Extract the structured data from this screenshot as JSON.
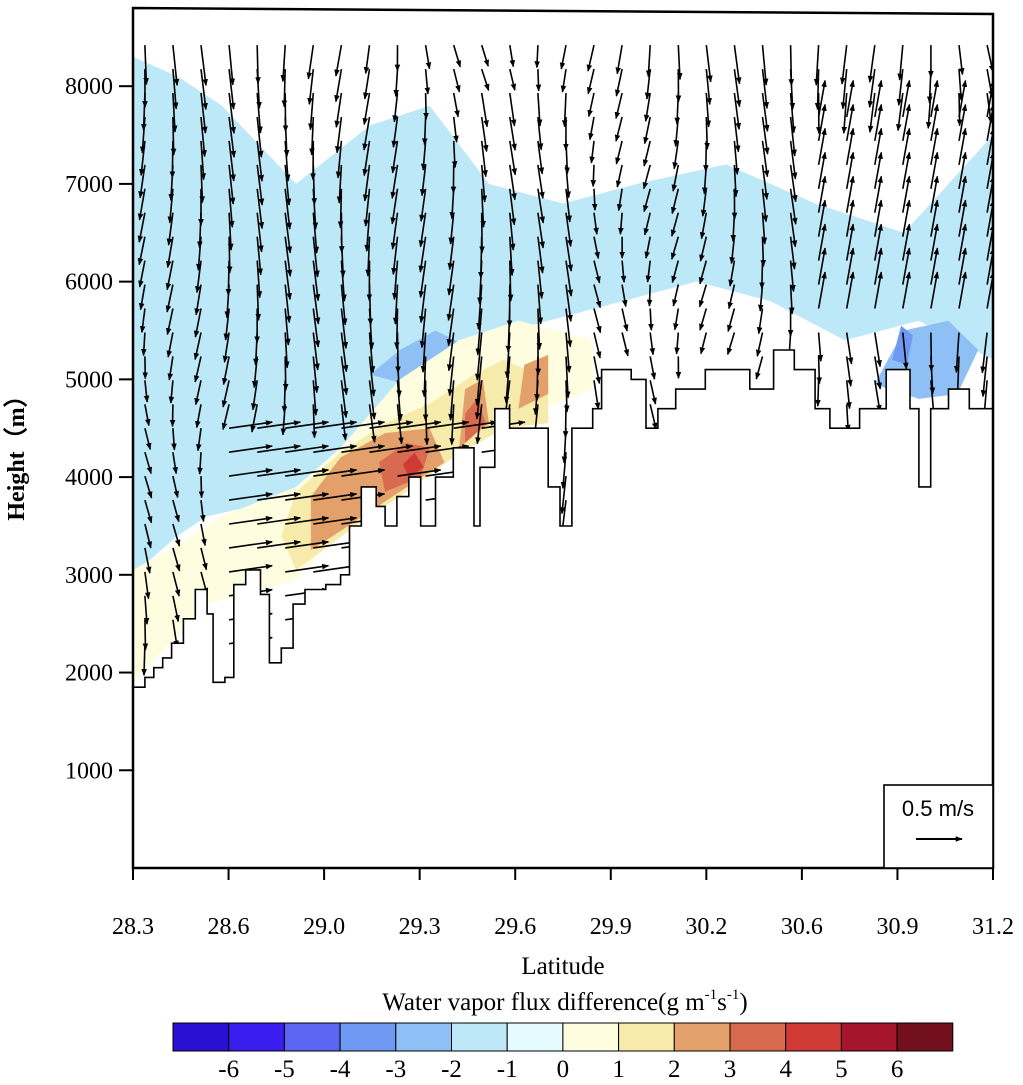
{
  "chart_data": {
    "type": "contour-vector",
    "xlabel": "Latitude",
    "ylabel": "Height（m）",
    "x_ticks": [
      "28.3",
      "28.6",
      "29.0",
      "29.3",
      "29.6",
      "29.9",
      "30.2",
      "30.6",
      "30.9",
      "31.2"
    ],
    "xlim": [
      28.3,
      31.2
    ],
    "y_ticks": [
      "1000",
      "2000",
      "3000",
      "4000",
      "5000",
      "6000",
      "7000",
      "8000"
    ],
    "ylim": [
      0,
      8800
    ],
    "colorbar": {
      "title": "Water vapor flux difference(g m",
      "title_sup1": "-1",
      "title_mid": "s",
      "title_sup2": "-1",
      "title_end": ")",
      "labels": [
        "-6",
        "-5",
        "-4",
        "-3",
        "-2",
        "-1",
        "0",
        "1",
        "2",
        "3",
        "4",
        "5",
        "6"
      ],
      "colors": [
        "#2a10d0",
        "#3a1ef0",
        "#5a66f2",
        "#6f98f2",
        "#8ec0f5",
        "#bde8f8",
        "#e6fbff",
        "#fffde0",
        "#f6ebaa",
        "#e3a06a",
        "#d86a4f",
        "#cf3a34",
        "#a5162c",
        "#73101e"
      ]
    },
    "reference_vector": {
      "label": "0.5 m/s",
      "value": 0.5,
      "unit": "m/s"
    },
    "terrain": [
      [
        28.3,
        1850
      ],
      [
        28.34,
        1950
      ],
      [
        28.37,
        2050
      ],
      [
        28.4,
        2150
      ],
      [
        28.43,
        2300
      ],
      [
        28.47,
        2550
      ],
      [
        28.51,
        2850
      ],
      [
        28.55,
        2600
      ],
      [
        28.57,
        1900
      ],
      [
        28.61,
        1950
      ],
      [
        28.64,
        2900
      ],
      [
        28.68,
        3050
      ],
      [
        28.73,
        2800
      ],
      [
        28.76,
        2100
      ],
      [
        28.8,
        2250
      ],
      [
        28.84,
        2700
      ],
      [
        28.88,
        2850
      ],
      [
        28.95,
        2900
      ],
      [
        29.0,
        3000
      ],
      [
        29.03,
        3500
      ],
      [
        29.07,
        3900
      ],
      [
        29.12,
        3700
      ],
      [
        29.15,
        3500
      ],
      [
        29.19,
        3800
      ],
      [
        29.23,
        4000
      ],
      [
        29.27,
        3500
      ],
      [
        29.32,
        4000
      ],
      [
        29.38,
        4300
      ],
      [
        29.45,
        3500
      ],
      [
        29.47,
        4100
      ],
      [
        29.52,
        4700
      ],
      [
        29.57,
        4500
      ],
      [
        29.63,
        4500
      ],
      [
        29.7,
        3900
      ],
      [
        29.74,
        3500
      ],
      [
        29.78,
        4500
      ],
      [
        29.85,
        4700
      ],
      [
        29.88,
        5100
      ],
      [
        29.98,
        5000
      ],
      [
        30.03,
        4500
      ],
      [
        30.07,
        4700
      ],
      [
        30.13,
        4900
      ],
      [
        30.23,
        5100
      ],
      [
        30.38,
        4900
      ],
      [
        30.46,
        5300
      ],
      [
        30.53,
        5100
      ],
      [
        30.6,
        4700
      ],
      [
        30.65,
        4500
      ],
      [
        30.75,
        4700
      ],
      [
        30.84,
        5100
      ],
      [
        30.92,
        4700
      ],
      [
        30.95,
        3900
      ],
      [
        30.99,
        4700
      ],
      [
        31.05,
        4900
      ],
      [
        31.12,
        4700
      ],
      [
        31.2,
        4500
      ]
    ],
    "contours": [
      {
        "level": -1,
        "points": [
          [
            28.3,
            3000
          ],
          [
            28.45,
            3400
          ],
          [
            28.55,
            3600
          ],
          [
            28.7,
            3700
          ],
          [
            28.85,
            3800
          ],
          [
            29.0,
            4000
          ],
          [
            29.1,
            4500
          ],
          [
            29.25,
            5000
          ],
          [
            29.45,
            5400
          ],
          [
            29.7,
            5600
          ],
          [
            29.95,
            5800
          ],
          [
            30.2,
            6000
          ],
          [
            30.45,
            5800
          ],
          [
            30.7,
            5400
          ],
          [
            30.95,
            5600
          ],
          [
            31.2,
            5200
          ],
          [
            31.2,
            7500
          ],
          [
            30.9,
            6500
          ],
          [
            30.6,
            6800
          ],
          [
            30.3,
            7200
          ],
          [
            30.0,
            7000
          ],
          [
            29.75,
            6800
          ],
          [
            29.5,
            7000
          ],
          [
            29.3,
            7800
          ],
          [
            29.1,
            7600
          ],
          [
            28.85,
            7000
          ],
          [
            28.6,
            7800
          ],
          [
            28.45,
            8100
          ],
          [
            28.3,
            8300
          ]
        ]
      },
      {
        "level": -2,
        "points": [
          [
            29.1,
            5050
          ],
          [
            29.2,
            5300
          ],
          [
            29.32,
            5500
          ],
          [
            29.42,
            5350
          ],
          [
            29.38,
            5050
          ],
          [
            29.22,
            4950
          ]
        ]
      },
      {
        "level": -2,
        "points": [
          [
            30.8,
            4950
          ],
          [
            30.9,
            5500
          ],
          [
            31.05,
            5600
          ],
          [
            31.15,
            5300
          ],
          [
            31.08,
            4850
          ],
          [
            30.95,
            4800
          ]
        ]
      },
      {
        "level": -3,
        "points": [
          [
            30.86,
            5200
          ],
          [
            30.89,
            5550
          ],
          [
            30.93,
            5450
          ],
          [
            30.91,
            5150
          ]
        ]
      },
      {
        "level": 1,
        "points": [
          [
            28.3,
            1900
          ],
          [
            28.55,
            2700
          ],
          [
            28.85,
            2950
          ],
          [
            29.05,
            3600
          ],
          [
            29.25,
            4100
          ],
          [
            29.45,
            4400
          ],
          [
            29.6,
            4600
          ],
          [
            29.85,
            4900
          ],
          [
            29.85,
            5400
          ],
          [
            29.6,
            5600
          ],
          [
            29.4,
            5400
          ],
          [
            29.2,
            5000
          ],
          [
            29.0,
            4300
          ],
          [
            28.85,
            3900
          ],
          [
            28.6,
            3600
          ],
          [
            28.45,
            3300
          ],
          [
            28.3,
            3050
          ]
        ]
      },
      {
        "level": 2,
        "points": [
          [
            28.85,
            3050
          ],
          [
            29.05,
            3500
          ],
          [
            29.2,
            3800
          ],
          [
            29.38,
            4200
          ],
          [
            29.55,
            4500
          ],
          [
            29.7,
            4550
          ],
          [
            29.7,
            5000
          ],
          [
            29.55,
            5200
          ],
          [
            29.45,
            5050
          ],
          [
            29.3,
            4750
          ],
          [
            29.15,
            4550
          ],
          [
            29.0,
            4250
          ],
          [
            28.85,
            3850
          ],
          [
            28.8,
            3400
          ]
        ]
      },
      {
        "level": 3,
        "points": [
          [
            28.9,
            3250
          ],
          [
            29.05,
            3550
          ],
          [
            29.2,
            3850
          ],
          [
            29.35,
            4150
          ],
          [
            29.3,
            4500
          ],
          [
            29.15,
            4450
          ],
          [
            29.0,
            4200
          ],
          [
            28.9,
            3800
          ]
        ]
      },
      {
        "level": 3,
        "points": [
          [
            29.4,
            4300
          ],
          [
            29.5,
            4550
          ],
          [
            29.48,
            5000
          ],
          [
            29.42,
            4900
          ]
        ]
      },
      {
        "level": 3,
        "points": [
          [
            29.6,
            4700
          ],
          [
            29.7,
            4850
          ],
          [
            29.7,
            5250
          ],
          [
            29.62,
            5150
          ]
        ]
      },
      {
        "level": 4,
        "points": [
          [
            29.15,
            3850
          ],
          [
            29.27,
            4000
          ],
          [
            29.3,
            4300
          ],
          [
            29.22,
            4350
          ],
          [
            29.13,
            4150
          ]
        ]
      },
      {
        "level": 4,
        "points": [
          [
            29.42,
            4350
          ],
          [
            29.49,
            4550
          ],
          [
            29.46,
            4800
          ],
          [
            29.42,
            4650
          ]
        ]
      },
      {
        "level": 5,
        "points": [
          [
            29.23,
            4000
          ],
          [
            29.28,
            4100
          ],
          [
            29.25,
            4250
          ],
          [
            29.21,
            4130
          ]
        ]
      }
    ]
  }
}
